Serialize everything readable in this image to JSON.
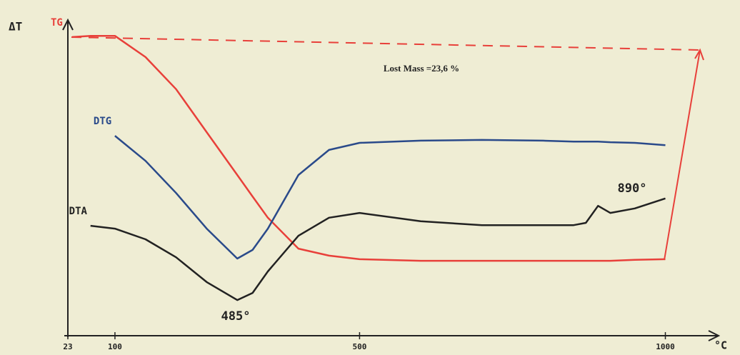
{
  "chart_data": {
    "type": "line",
    "y_label": "ΔT",
    "x_unit": "°C",
    "annotations": [
      "Lost Mass =23,6 %",
      "485°",
      "890°"
    ],
    "x": [
      30,
      60,
      100,
      150,
      200,
      250,
      300,
      325,
      350,
      400,
      450,
      500,
      600,
      700,
      800,
      850,
      870,
      890,
      910,
      950,
      1000
    ],
    "xlim": [
      23,
      1080
    ],
    "xticks": [
      23,
      100,
      500,
      1000
    ],
    "ylim": [
      0,
      100
    ],
    "series": [
      {
        "name": "TG",
        "color": "#e8403a",
        "values": [
          92.9,
          93.3,
          93.3,
          86.7,
          76.7,
          63.3,
          50.0,
          43.3,
          36.7,
          27.1,
          24.9,
          23.8,
          23.3,
          23.3,
          23.3,
          23.3,
          23.3,
          23.3,
          23.3,
          23.6,
          23.8
        ]
      },
      {
        "name": "DTG",
        "color": "#2a4a8a",
        "values": [
          null,
          null,
          62.2,
          54.4,
          44.4,
          33.3,
          24.0,
          26.7,
          33.3,
          50.0,
          57.8,
          60.0,
          60.7,
          60.9,
          60.7,
          60.4,
          60.4,
          60.4,
          60.2,
          60.0,
          59.3
        ]
      },
      {
        "name": "DTA",
        "color": "#222222",
        "values": [
          null,
          34.2,
          33.3,
          30.0,
          24.4,
          16.7,
          11.1,
          13.3,
          20.0,
          31.1,
          36.7,
          38.2,
          35.6,
          34.4,
          34.4,
          34.4,
          35.1,
          40.4,
          38.2,
          39.6,
          42.7
        ]
      }
    ]
  }
}
